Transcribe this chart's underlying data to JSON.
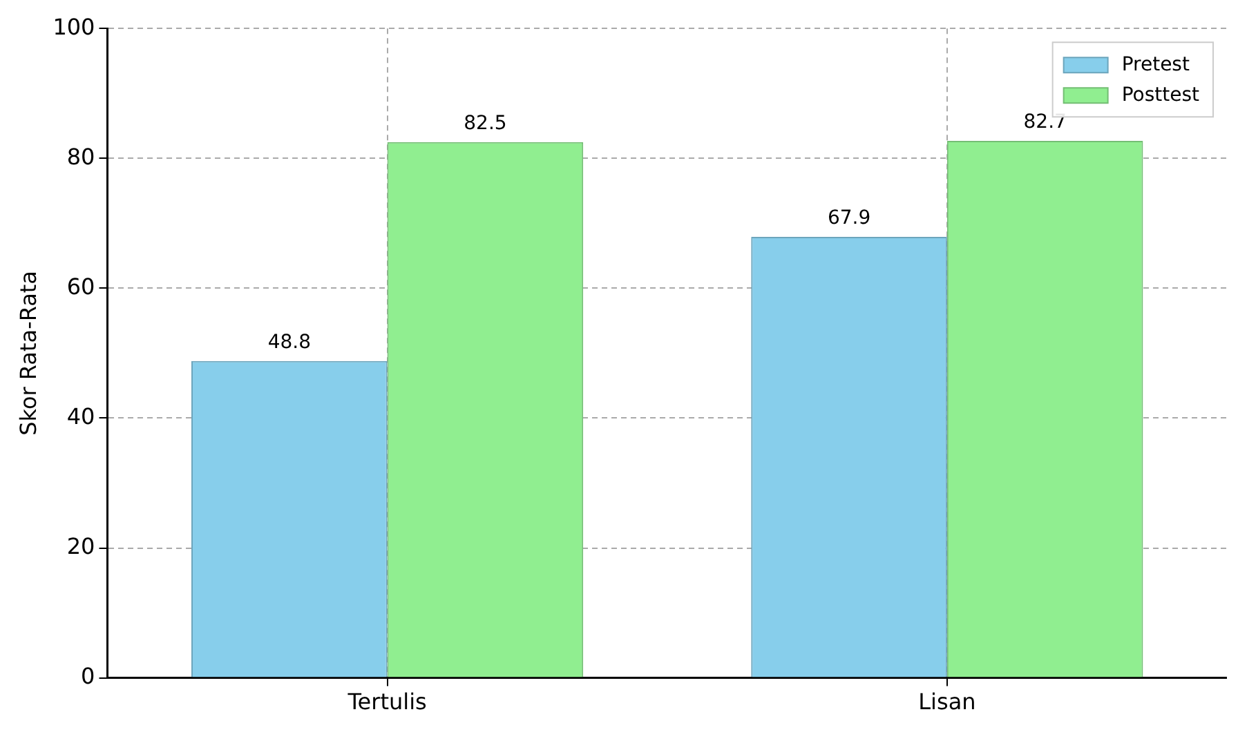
{
  "chart_data": {
    "type": "bar",
    "ylabel": "Skor Rata-Rata",
    "categories": [
      "Tertulis",
      "Lisan"
    ],
    "series": [
      {
        "name": "Pretest",
        "color": "#87ceeb",
        "values": [
          48.8,
          67.9
        ]
      },
      {
        "name": "Posttest",
        "color": "#90ee90",
        "values": [
          82.5,
          82.7
        ]
      }
    ],
    "ylim": [
      0,
      100
    ],
    "yticks": [
      0,
      20,
      40,
      60,
      80,
      100
    ],
    "grid": true,
    "legend": "top right",
    "data_labels": true
  }
}
